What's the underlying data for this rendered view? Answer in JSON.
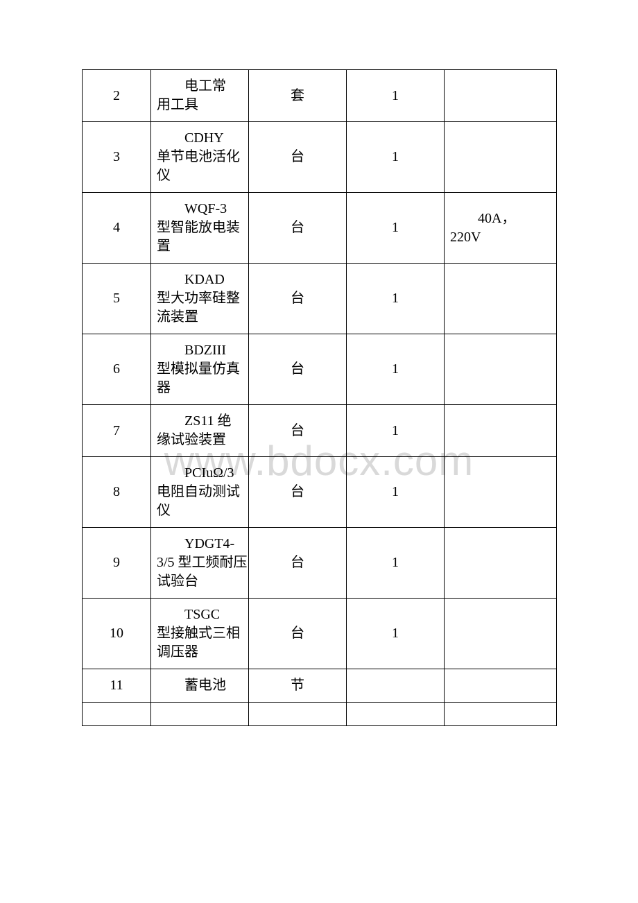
{
  "watermark": "www.bdocx.com",
  "table": {
    "columns": {
      "num_width": 99,
      "name_width": 141,
      "unit_width": 141,
      "qty_width": 141,
      "note_width": 162
    },
    "border_color": "#000000",
    "background_color": "#ffffff",
    "text_color": "#000000",
    "font_size": 20,
    "watermark_color": "#d9d9d9",
    "watermark_fontsize": 60,
    "rows": [
      {
        "num": "2",
        "name_indent": "电工常",
        "name_wrap": "用工具",
        "unit": "套",
        "qty": "1",
        "note_indent": "",
        "note_wrap": ""
      },
      {
        "num": "3",
        "name_indent": "CDHY",
        "name_wrap": "单节电池活化仪",
        "unit": "台",
        "qty": "1",
        "note_indent": "",
        "note_wrap": ""
      },
      {
        "num": "4",
        "name_indent": "WQF-3",
        "name_wrap": "型智能放电装置",
        "unit": "台",
        "qty": "1",
        "note_indent": "40A，",
        "note_wrap": "220V"
      },
      {
        "num": "5",
        "name_indent": "KDAD",
        "name_wrap": "型大功率硅整流装置",
        "unit": "台",
        "qty": "1",
        "note_indent": "",
        "note_wrap": ""
      },
      {
        "num": "6",
        "name_indent": "BDZIII",
        "name_wrap": "型模拟量仿真器",
        "unit": "台",
        "qty": "1",
        "note_indent": "",
        "note_wrap": ""
      },
      {
        "num": "7",
        "name_indent": "ZS11 绝",
        "name_wrap": "缘试验装置",
        "unit": "台",
        "qty": "1",
        "note_indent": "",
        "note_wrap": ""
      },
      {
        "num": "8",
        "name_indent": "PCIuΩ/3",
        "name_wrap": "电阻自动测试仪",
        "unit": "台",
        "qty": "1",
        "note_indent": "",
        "note_wrap": ""
      },
      {
        "num": "9",
        "name_indent": "YDGT4-",
        "name_wrap": "3/5 型工频耐压试验台",
        "unit": "台",
        "qty": "1",
        "note_indent": "",
        "note_wrap": ""
      },
      {
        "num": "10",
        "name_indent": "TSGC",
        "name_wrap": "型接触式三相调压器",
        "unit": "台",
        "qty": "1",
        "note_indent": "",
        "note_wrap": ""
      },
      {
        "num": "11",
        "name_indent": "蓄电池",
        "name_wrap": "",
        "unit": "节",
        "qty": "",
        "note_indent": "",
        "note_wrap": ""
      }
    ]
  }
}
